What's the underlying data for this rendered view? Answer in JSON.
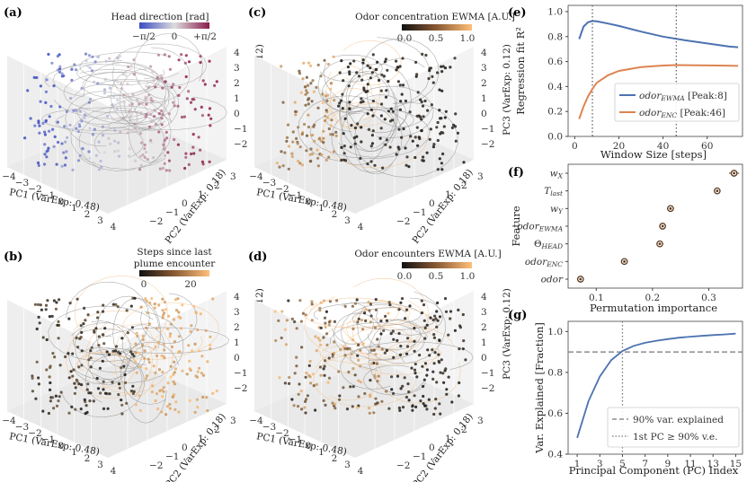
{
  "panel_labels": [
    "(a)",
    "(b)",
    "(c)",
    "(d)",
    "(e)",
    "(f)",
    "(g)"
  ],
  "pca_axes": {
    "pc1_label": "PC1 (VarExp: 0.48)",
    "pc2_label": "PC2 (VarExp: 0.18)",
    "pc3_label": "PC3 (VarExp: 0.12)",
    "pc1_ticks": [
      "−4",
      "−3",
      "−2",
      "−1",
      "0",
      "1",
      "2",
      "3",
      "4"
    ],
    "pc2_ticks": [
      "−2",
      "−1",
      "0",
      "1",
      "2",
      "3"
    ],
    "pc3_ticks": [
      "4",
      "3",
      "2",
      "1",
      "0",
      "−1",
      "−2"
    ]
  },
  "panel_a": {
    "colorbar_title": "Head direction [rad]",
    "colorbar_ticks": [
      "−π/2",
      "0",
      "+π/2"
    ],
    "colors": [
      "#3b4cc0",
      "#dddddd",
      "#8b1a4a"
    ]
  },
  "panel_b": {
    "colorbar_title_1": "Steps since last",
    "colorbar_title_2": "plume encounter",
    "colorbar_ticks": [
      "0",
      "20"
    ],
    "colors": [
      "#111111",
      "#ffbf78"
    ]
  },
  "panel_c": {
    "colorbar_title": "Odor concentration EWMA [A.U.]",
    "colorbar_ticks": [
      "0.0",
      "0.5",
      "1.0"
    ],
    "colors": [
      "#111111",
      "#ffbf78"
    ]
  },
  "panel_d": {
    "colorbar_title": "Odor encounters EWMA [A.U.]",
    "colorbar_ticks": [
      "0.0",
      "0.5",
      "1.0"
    ],
    "colors": [
      "#111111",
      "#ffbf78"
    ]
  },
  "chart_data": [
    {
      "type": "line",
      "panel": "(e)",
      "xlabel": "Window Size [steps]",
      "ylabel": "Regression fit R²",
      "xlim": [
        -3,
        76
      ],
      "ylim": [
        0.0,
        1.05
      ],
      "xticks": [
        "0",
        "20",
        "40",
        "60"
      ],
      "xtick_values": [
        0,
        20,
        40,
        60
      ],
      "yticks": [
        "0.0",
        "0.2",
        "0.4",
        "0.6",
        "0.8",
        "1.0"
      ],
      "ytick_values": [
        0.0,
        0.2,
        0.4,
        0.6,
        0.8,
        1.0
      ],
      "series": [
        {
          "name": "odor_EWMA [Peak:8]",
          "legend_main": "odor",
          "legend_sub": "EWMA",
          "legend_tail": " [Peak:8]",
          "color": "#4c72b0",
          "peak": 8,
          "x": [
            2,
            4,
            6,
            8,
            10,
            15,
            20,
            30,
            40,
            50,
            60,
            70,
            74
          ],
          "y": [
            0.78,
            0.88,
            0.915,
            0.925,
            0.922,
            0.905,
            0.885,
            0.84,
            0.8,
            0.77,
            0.745,
            0.72,
            0.715
          ]
        },
        {
          "name": "odor_ENC [Peak:46]",
          "legend_main": "odor",
          "legend_sub": "ENC",
          "legend_tail": " [Peak:46]",
          "color": "#dd8452",
          "peak": 46,
          "x": [
            2,
            4,
            6,
            8,
            10,
            15,
            20,
            30,
            40,
            46,
            55,
            65,
            74
          ],
          "y": [
            0.14,
            0.24,
            0.32,
            0.38,
            0.43,
            0.49,
            0.525,
            0.555,
            0.568,
            0.572,
            0.57,
            0.568,
            0.565
          ]
        }
      ]
    },
    {
      "type": "scatter",
      "panel": "(f)",
      "xlabel": "Permutation importance",
      "ylabel": "Feature",
      "xlim": [
        0.05,
        0.36
      ],
      "xticks": [
        "0.1",
        "0.2",
        "0.3"
      ],
      "xtick_values": [
        0.1,
        0.2,
        0.3
      ],
      "features": [
        {
          "main": "w",
          "sub": "X",
          "value": 0.345,
          "err": 0.003
        },
        {
          "main": "T",
          "sub": "last",
          "value": 0.315,
          "err": 0.002
        },
        {
          "main": "w",
          "sub": "Y",
          "value": 0.232,
          "err": 0.002
        },
        {
          "main": "odor",
          "sub": "EWMA",
          "value": 0.218,
          "err": 0.002
        },
        {
          "main": "Θ",
          "sub": "HEAD",
          "value": 0.213,
          "err": 0.002
        },
        {
          "main": "odor",
          "sub": "ENC",
          "value": 0.15,
          "err": 0.002
        },
        {
          "main": "odor",
          "sub": "",
          "value": 0.072,
          "err": 0.002
        }
      ],
      "marker_color": "#5c3a1e"
    },
    {
      "type": "line",
      "panel": "(g)",
      "xlabel": "Principal Component (PC) Index",
      "ylabel": "Var. Explained [Fraction]",
      "xlim": [
        0.2,
        15.6
      ],
      "ylim": [
        0.4,
        1.05
      ],
      "xticks": [
        "1",
        "3",
        "5",
        "7",
        "9",
        "11",
        "13",
        "15"
      ],
      "xtick_values": [
        1,
        3,
        5,
        7,
        9,
        11,
        13,
        15
      ],
      "yticks": [
        "0.4",
        "0.6",
        "0.8",
        "1.0"
      ],
      "ytick_values": [
        0.4,
        0.6,
        0.8,
        1.0
      ],
      "x": [
        1,
        2,
        3,
        4,
        5,
        6,
        7,
        8,
        9,
        10,
        11,
        12,
        13,
        14,
        15
      ],
      "y": [
        0.48,
        0.66,
        0.78,
        0.86,
        0.905,
        0.93,
        0.945,
        0.955,
        0.963,
        0.97,
        0.975,
        0.979,
        0.983,
        0.986,
        0.99
      ],
      "color": "#4c72b0",
      "hline": 0.9,
      "vline": 5,
      "legend": [
        "90% var. explained",
        "1st PC ≥ 90% v.e."
      ]
    }
  ]
}
